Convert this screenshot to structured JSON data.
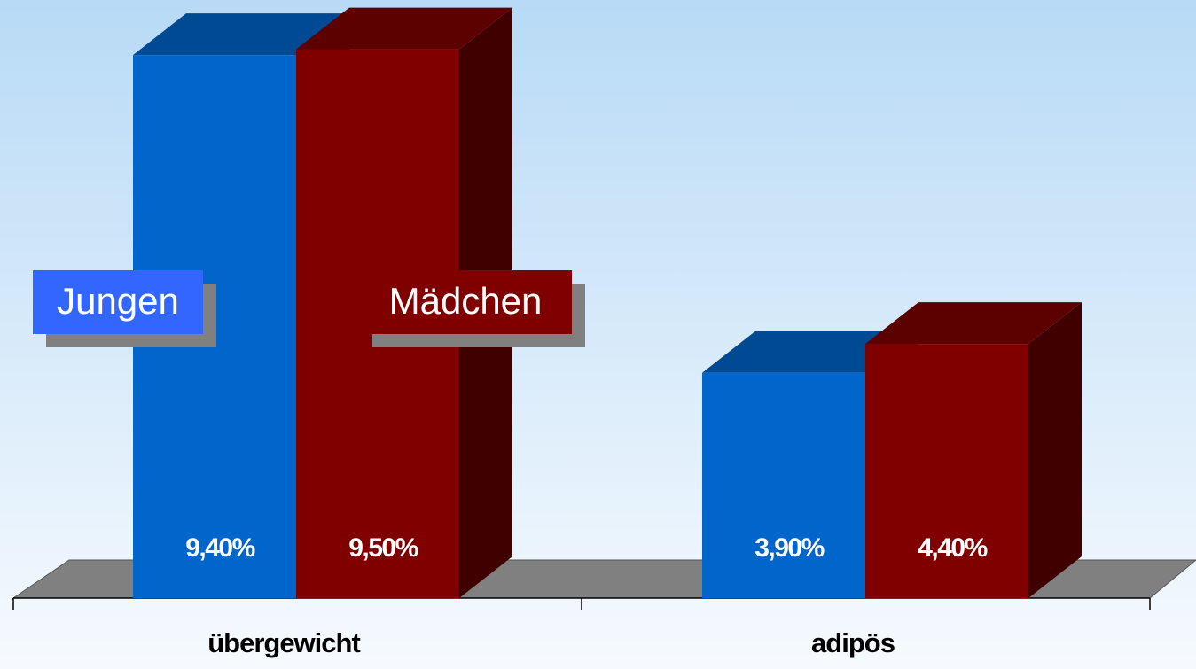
{
  "chart_data": {
    "type": "bar3d",
    "categories": [
      "übergewicht",
      "adipös"
    ],
    "series": [
      {
        "name": "Jungen",
        "color": "#0066cc",
        "values": [
          9.4,
          3.9
        ],
        "value_labels": [
          "9,40%",
          "3,90%"
        ]
      },
      {
        "name": "Mädchen",
        "color": "#800000",
        "values": [
          9.5,
          4.4
        ],
        "value_labels": [
          "9,50%",
          "4,40%"
        ]
      }
    ]
  }
}
